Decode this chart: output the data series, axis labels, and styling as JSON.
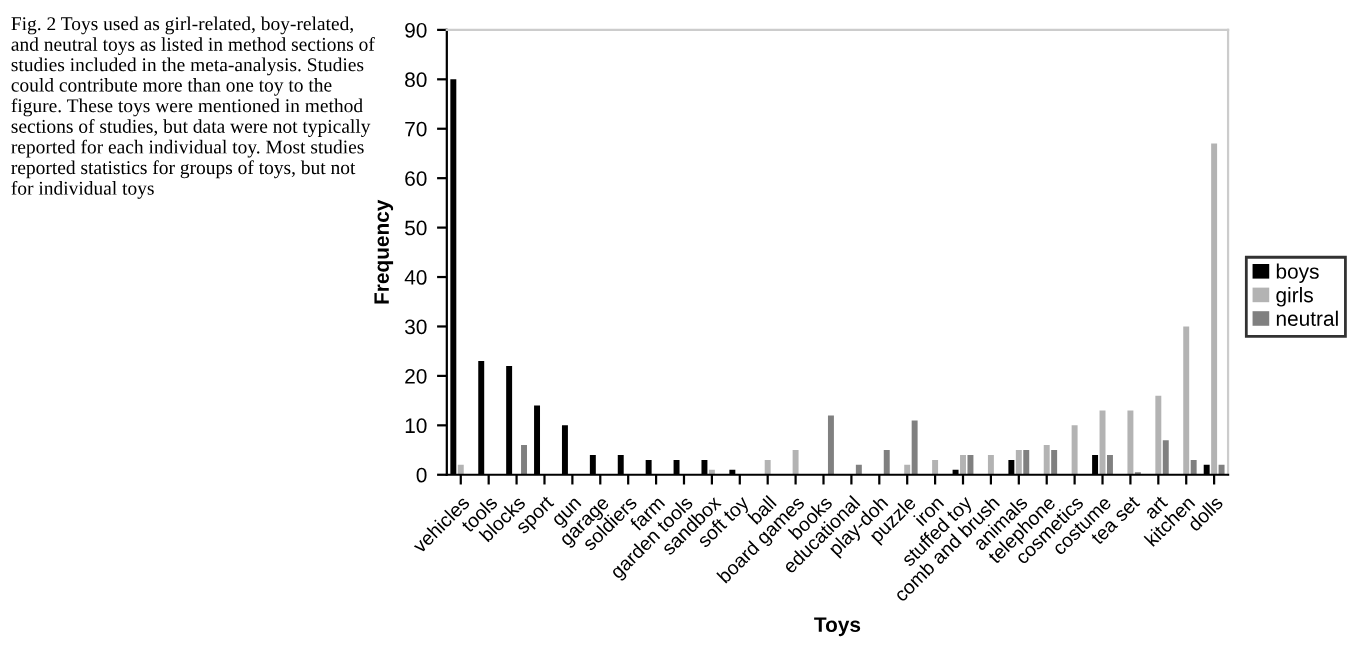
{
  "chart_data": {
    "type": "bar",
    "xlabel": "Toys",
    "ylabel": "Frequency",
    "categories": [
      "vehicles",
      "tools",
      "blocks",
      "sport",
      "gun",
      "garage",
      "soldiers",
      "farm",
      "garden tools",
      "sandbox",
      "soft toy",
      "ball",
      "board games",
      "books",
      "educational",
      "play-doh",
      "puzzle",
      "iron",
      "stuffed toy",
      "comb and brush",
      "animals",
      "telephone",
      "cosmetics",
      "costume",
      "tea set",
      "art",
      "kitchen",
      "dolls"
    ],
    "series": [
      {
        "name": "boys",
        "color": "#000000",
        "values": [
          80,
          23,
          22,
          14,
          10,
          4,
          4,
          3,
          3,
          3,
          1,
          0,
          0,
          0,
          0,
          0,
          0,
          0,
          1,
          0,
          3,
          0,
          0,
          4,
          0,
          0,
          0,
          2
        ]
      },
      {
        "name": "girls",
        "color": "#b3b3b3",
        "values": [
          2,
          0,
          0,
          0,
          0,
          0,
          0,
          0,
          0,
          1,
          0,
          3,
          5,
          0,
          0,
          0,
          2,
          3,
          4,
          4,
          5,
          6,
          10,
          13,
          13,
          16,
          30,
          67
        ]
      },
      {
        "name": "neutral",
        "color": "#808080",
        "values": [
          0,
          0,
          6,
          0,
          0,
          0,
          0,
          0,
          0,
          0,
          0,
          0,
          0,
          12,
          2,
          5,
          11,
          0,
          4,
          0,
          5,
          5,
          0,
          4,
          0.5,
          7,
          3,
          2
        ]
      }
    ],
    "ylim": [
      0,
      90
    ],
    "yticks": [
      0,
      10,
      20,
      30,
      40,
      50,
      60,
      70,
      80,
      90
    ],
    "grid": false,
    "legend": "right",
    "annotations": [
      "Fig. 2 Toys used as girl-related, boy-related, and neutral toys as listed in method sections of studies included in the meta-analysis. Studies could contribute more than one toy to the figure. These toys were mentioned in method sections of studies, but data were not typically reported for each individual toy. Most studies reported statistics for groups of toys, but not for individual toys"
    ]
  }
}
